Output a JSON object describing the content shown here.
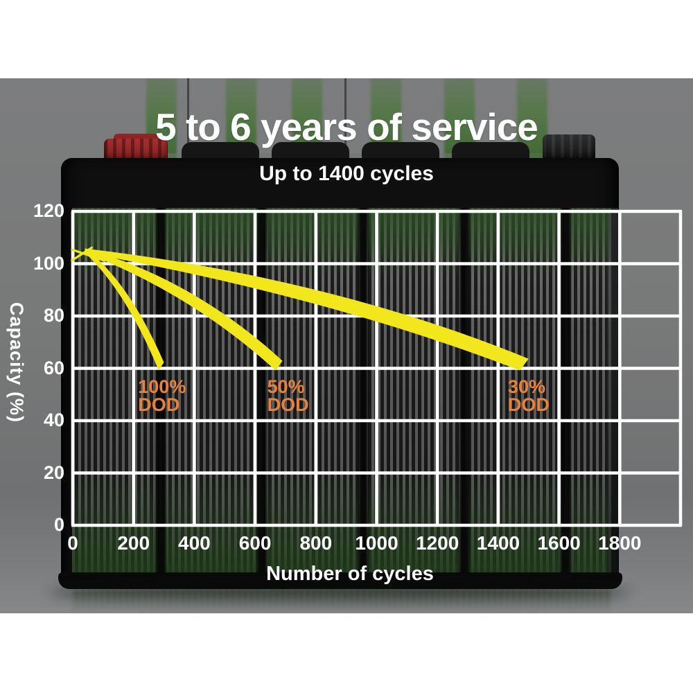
{
  "header": {
    "title": "5 to 6 years of service",
    "subtitle": "Up to 1400 cycles"
  },
  "chart_data": {
    "type": "area",
    "title": "5 to 6 years of service",
    "subtitle": "Up to 1400 cycles",
    "xlabel": "Number of cycles",
    "ylabel": "Capacity (%)",
    "x_ticks": [
      0,
      200,
      400,
      600,
      800,
      1000,
      1200,
      1400,
      1600,
      1800
    ],
    "y_ticks": [
      120,
      100,
      80,
      60,
      40,
      20,
      0
    ],
    "xlim": [
      0,
      2000
    ],
    "ylim": [
      0,
      120
    ],
    "x_step": 200,
    "y_step": 20,
    "grid": true,
    "legend_position": "none",
    "series": [
      {
        "name": "100% DOD",
        "start_cycles": 40,
        "start_capacity": 105,
        "end_cycles": 300,
        "end_capacity": 60
      },
      {
        "name": "50% DOD",
        "start_cycles": 40,
        "start_capacity": 105,
        "end_cycles": 690,
        "end_capacity": 60
      },
      {
        "name": "30% DOD",
        "start_cycles": 40,
        "start_capacity": 105,
        "end_cycles": 1500,
        "end_capacity": 60
      }
    ],
    "annotations": [
      {
        "line1": "100%",
        "line2": "DOD",
        "at_cycles": 215,
        "at_capacity": 56.5
      },
      {
        "line1": "50%",
        "line2": "DOD",
        "at_cycles": 640,
        "at_capacity": 56.5
      },
      {
        "line1": "30%",
        "line2": "DOD",
        "at_cycles": 1432,
        "at_capacity": 56.5
      }
    ]
  },
  "colors": {
    "curve_yellow": "#f2e71c",
    "dod_label_orange": "#e8823b",
    "grid_white": "#ffffff",
    "text_white": "#ffffff",
    "background_gray": "#787979",
    "battery_green": "#3f6e2d"
  }
}
